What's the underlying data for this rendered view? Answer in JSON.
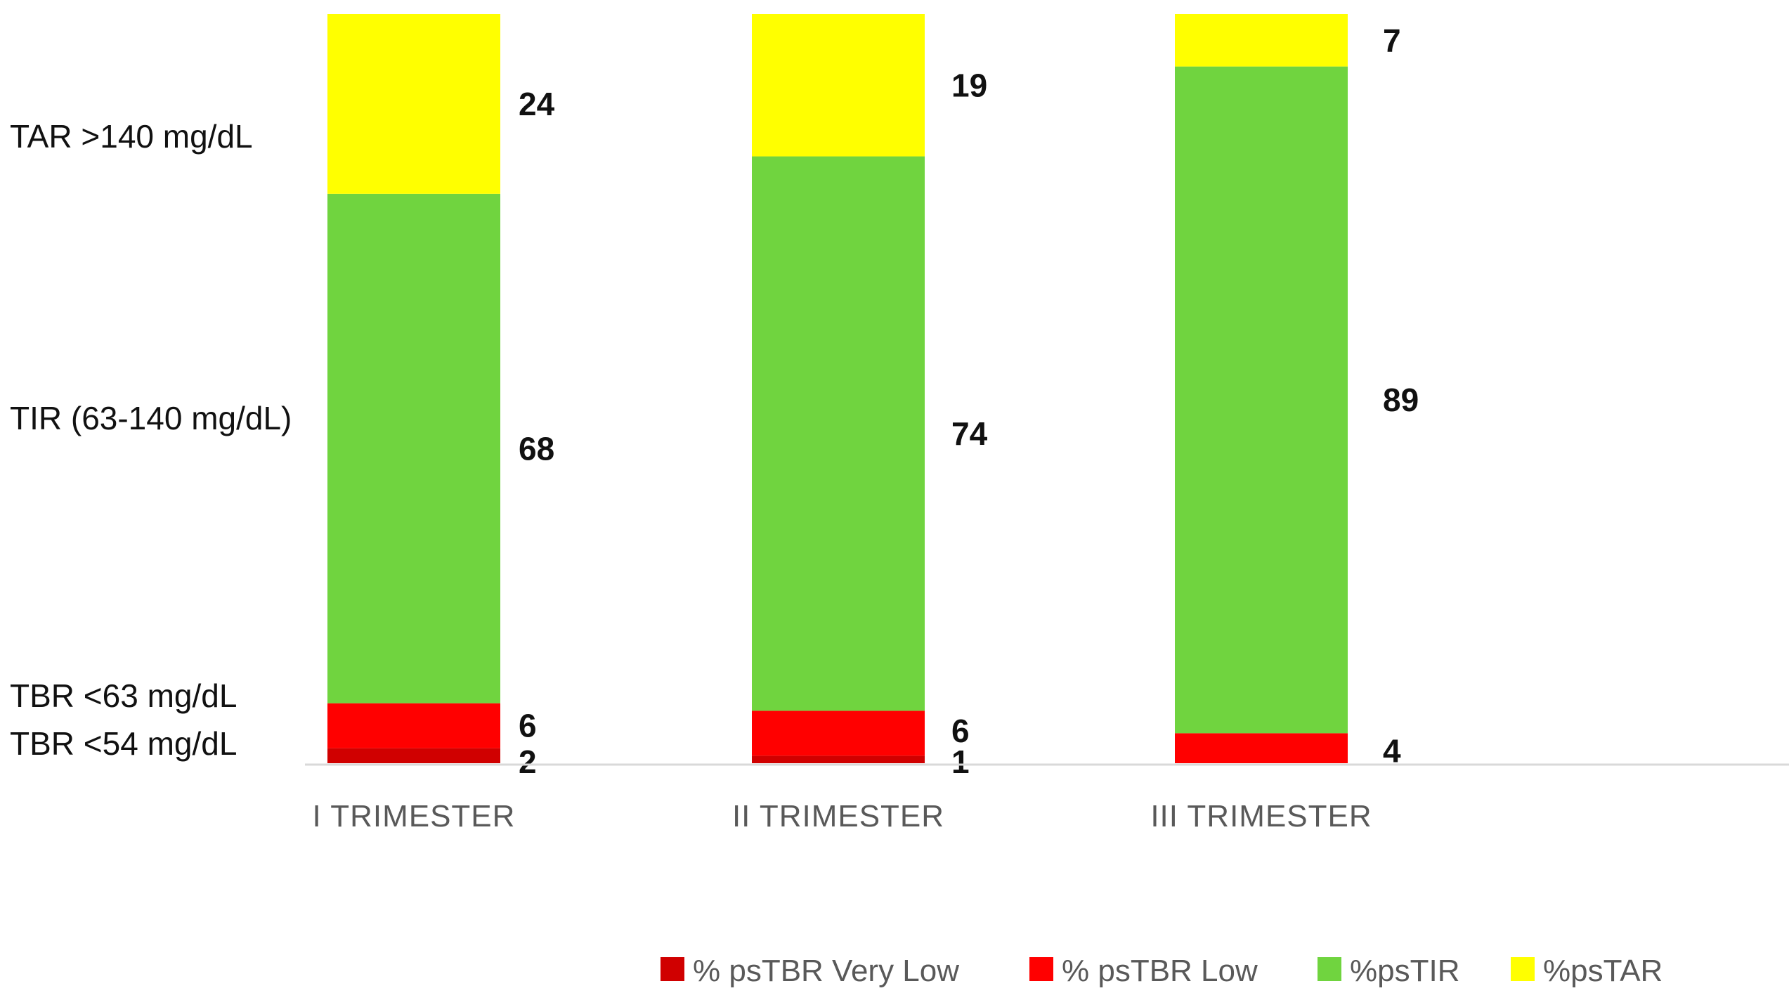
{
  "chart_data": {
    "type": "stacked-bar",
    "categories": [
      "I TRIMESTER",
      "II TRIMESTER",
      "III TRIMESTER"
    ],
    "series": [
      {
        "name": "% psTBR Very Low",
        "color": "#D00000",
        "values": [
          2,
          1,
          0
        ],
        "labels": [
          "2",
          "1",
          ""
        ]
      },
      {
        "name": "% psTBR Low",
        "color": "#FF0000",
        "values": [
          6,
          6,
          4
        ],
        "labels": [
          "6",
          "6",
          "4"
        ]
      },
      {
        "name": "%psTIR",
        "color": "#70D43F",
        "values": [
          68,
          74,
          89
        ],
        "labels": [
          "68",
          "74",
          "89"
        ]
      },
      {
        "name": "%psTAR",
        "color": "#FFFF00",
        "values": [
          24,
          19,
          7
        ],
        "labels": [
          "24",
          "19",
          "7"
        ]
      }
    ],
    "range_labels": [
      "TAR >140 mg/dL",
      "TIR (63-140 mg/dL)",
      "TBR <63 mg/dL",
      "TBR <54 mg/dL"
    ],
    "ylim": [
      0,
      100
    ],
    "grid": false,
    "legend_position": "bottom-right"
  }
}
